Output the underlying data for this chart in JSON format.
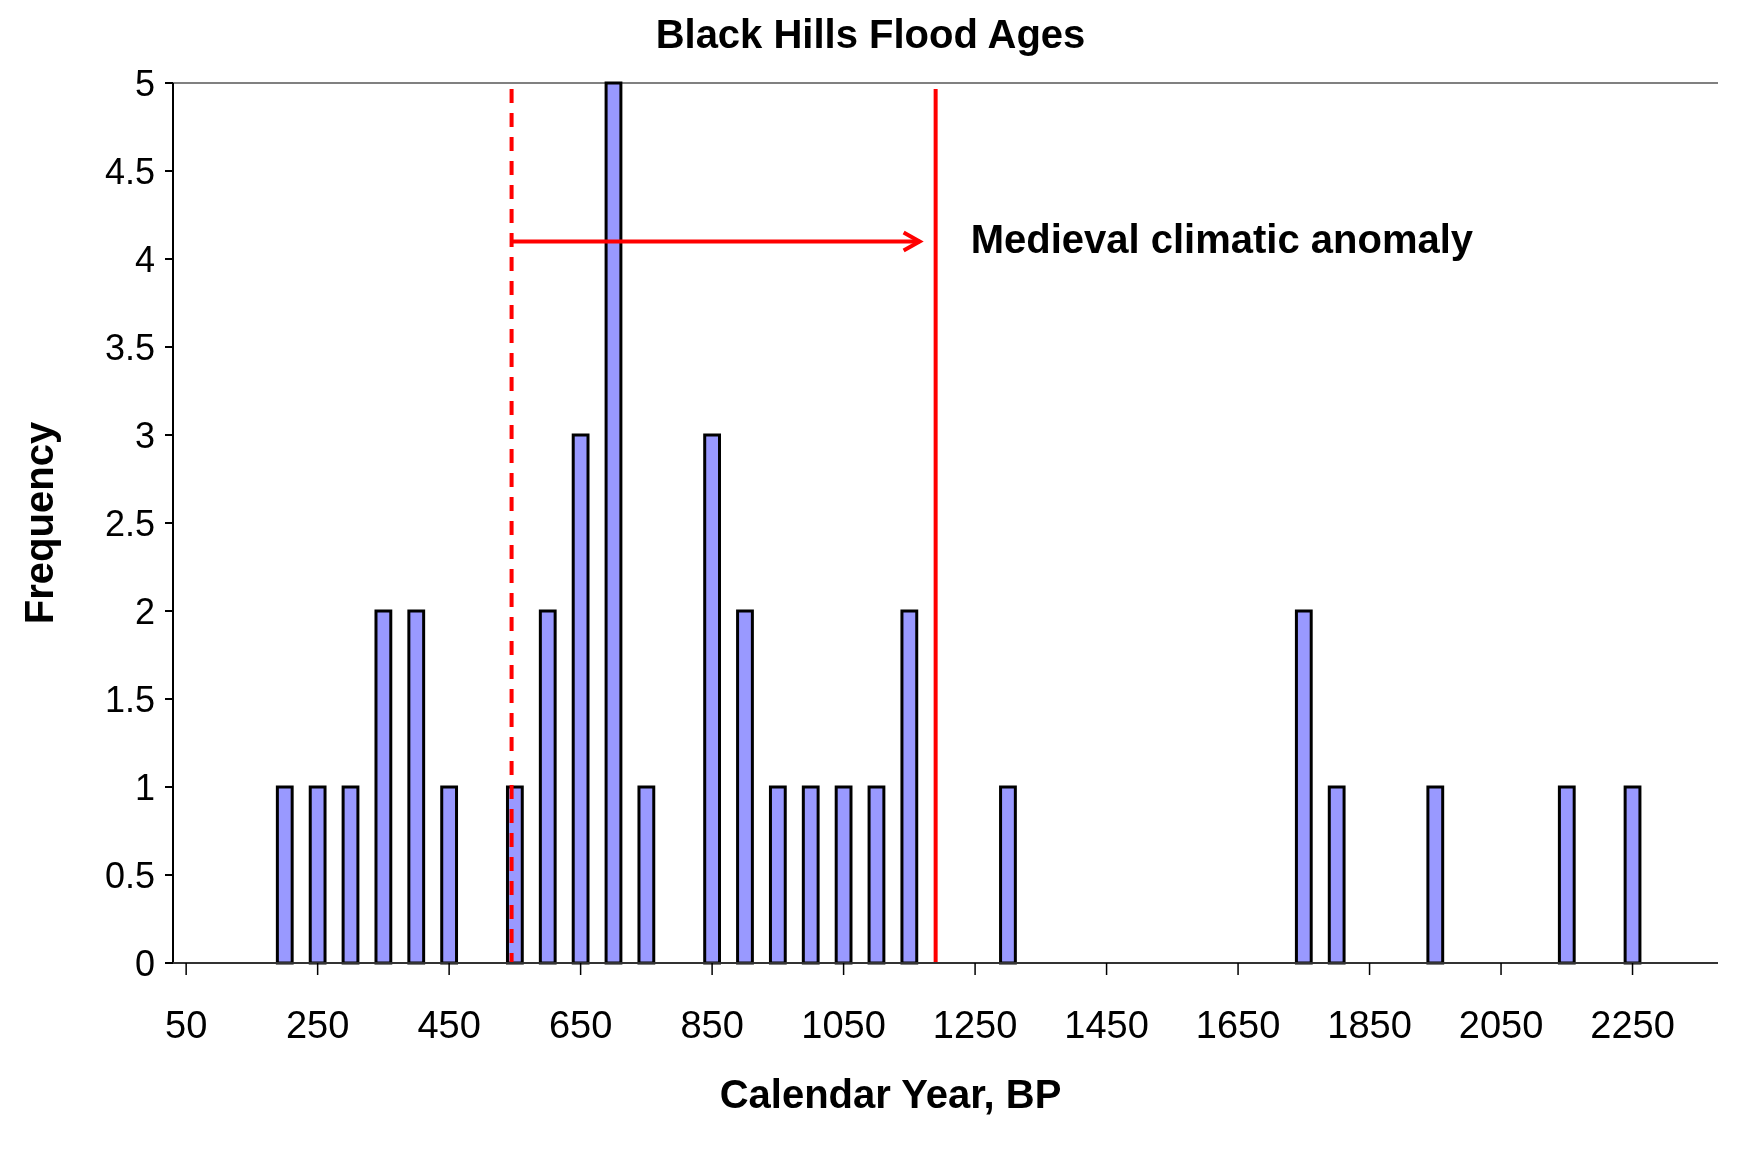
{
  "chart_data": {
    "type": "bar",
    "title": "Black Hills Flood Ages",
    "xlabel": "Calendar Year, BP",
    "ylabel": "Frequency",
    "x": [
      200,
      250,
      300,
      350,
      400,
      450,
      550,
      600,
      650,
      700,
      750,
      850,
      900,
      950,
      1000,
      1050,
      1100,
      1150,
      1300,
      1750,
      1800,
      1950,
      2150,
      2250
    ],
    "values": [
      1,
      1,
      1,
      2,
      2,
      1,
      1,
      2,
      3,
      5,
      1,
      3,
      2,
      1,
      1,
      1,
      1,
      2,
      1,
      2,
      1,
      1,
      1,
      1
    ],
    "color": "#9999ff",
    "xlim": [
      30,
      2380
    ],
    "xticks": [
      50,
      250,
      450,
      650,
      850,
      1050,
      1250,
      1450,
      1650,
      1850,
      2050,
      2250
    ],
    "ylim": [
      0,
      5
    ],
    "yticks": [
      0,
      0.5,
      1,
      1.5,
      2,
      2.5,
      3,
      3.5,
      4,
      4.5,
      5
    ],
    "ref_lines": [
      {
        "axis": "x",
        "value": 545,
        "color": "#ff0000",
        "line_style": "dashed"
      },
      {
        "axis": "x",
        "value": 1190,
        "color": "#ff0000",
        "line_style": "solid"
      }
    ],
    "annotations": [
      {
        "text": "Medieval climatic anomaly",
        "x": 1190,
        "y": 4.1
      }
    ],
    "grid": false
  }
}
